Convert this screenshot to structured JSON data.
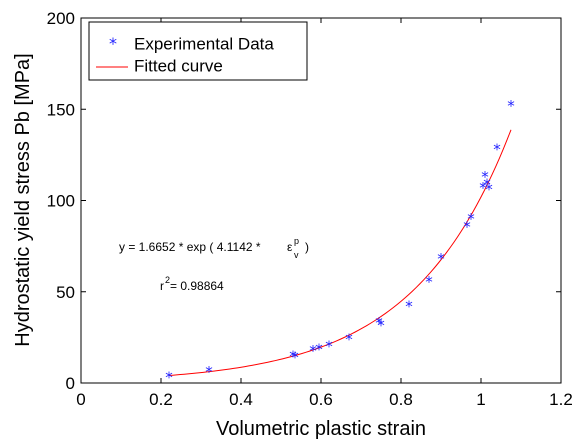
{
  "chart_data": {
    "type": "scatter",
    "xlabel": "Volumetric plastic strain",
    "ylabel": "Hydrostatic yield stress Pb [MPa]",
    "xlim": [
      0,
      1.2
    ],
    "ylim": [
      0,
      200
    ],
    "xticks": [
      0,
      0.2,
      0.4,
      0.6,
      0.8,
      1,
      1.2
    ],
    "xtick_labels": [
      "0",
      "0.2",
      "0.4",
      "0.6",
      "0.8",
      "1",
      "1.2"
    ],
    "yticks": [
      0,
      50,
      100,
      150,
      200
    ],
    "ytick_labels": [
      "0",
      "50",
      "100",
      "150",
      "200"
    ],
    "grid": false,
    "legend_position": "top-left",
    "series": [
      {
        "name": "Experimental Data",
        "kind": "scatter",
        "marker": "*",
        "color": "#1f1fff",
        "points": [
          [
            0.22,
            4
          ],
          [
            0.32,
            7
          ],
          [
            0.53,
            15.5
          ],
          [
            0.535,
            15
          ],
          [
            0.58,
            18.5
          ],
          [
            0.595,
            19.5
          ],
          [
            0.62,
            21
          ],
          [
            0.67,
            25
          ],
          [
            0.745,
            34
          ],
          [
            0.75,
            32.5
          ],
          [
            0.82,
            43
          ],
          [
            0.87,
            56.5
          ],
          [
            0.9,
            69
          ],
          [
            0.965,
            86.5
          ],
          [
            0.975,
            91
          ],
          [
            1.005,
            108
          ],
          [
            1.01,
            114
          ],
          [
            1.015,
            110
          ],
          [
            1.02,
            107
          ],
          [
            1.04,
            129
          ],
          [
            1.075,
            153
          ]
        ]
      },
      {
        "name": "Fitted curve",
        "kind": "line",
        "color": "#ff0000",
        "x_range": [
          0.22,
          1.075
        ],
        "model": {
          "a": 1.6652,
          "b": 4.1142
        }
      }
    ],
    "annotations": {
      "equation_prefix": "y = 1.6652 * exp ( 4.1142 *",
      "epsilon": "ε",
      "eps_sup": "p",
      "eps_sub": "v",
      "equation_close": ")",
      "r_label": "r",
      "r_sup": "2",
      "r_value": " = 0.98864"
    }
  }
}
